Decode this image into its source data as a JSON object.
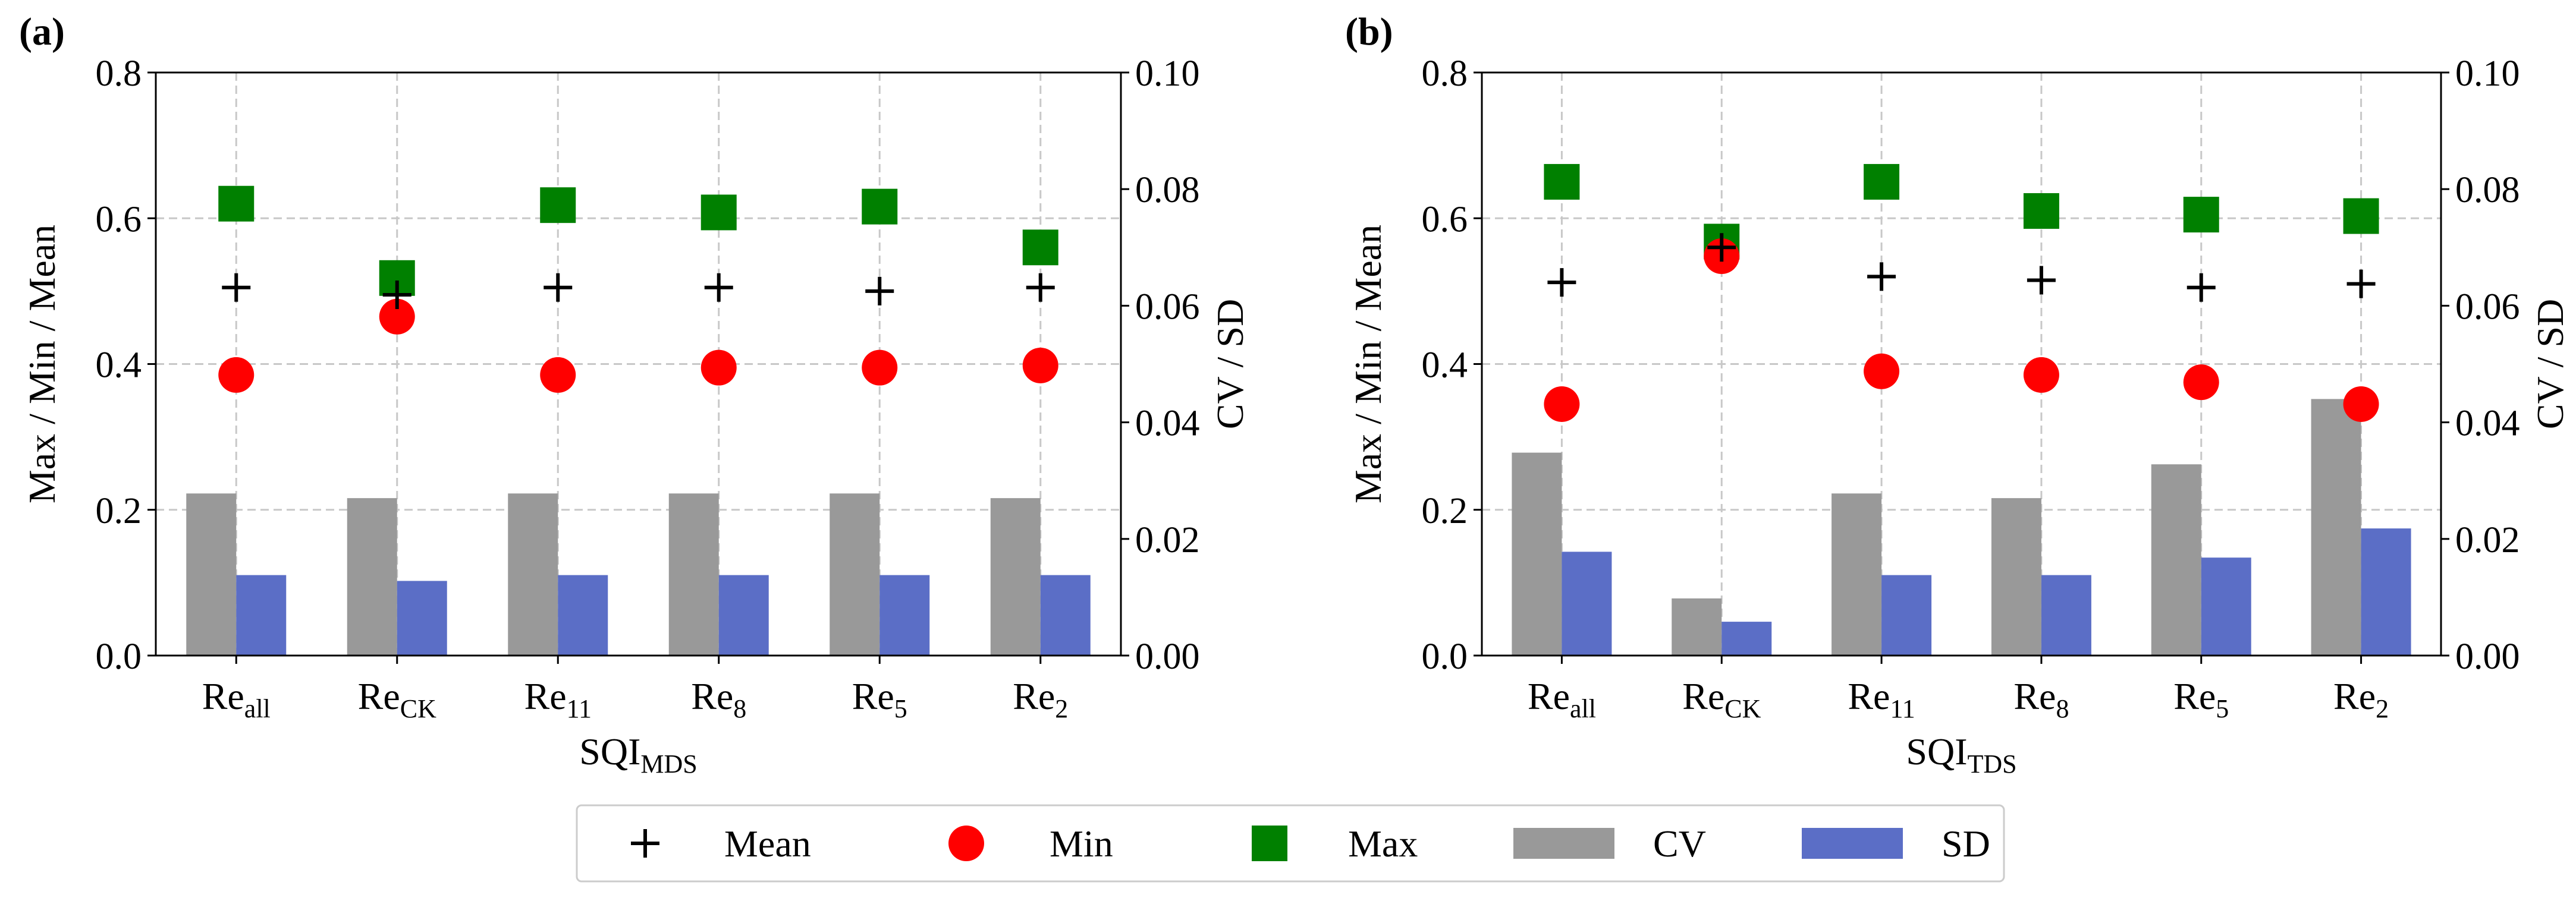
{
  "legend": {
    "items": [
      {
        "key": "mean",
        "label": "Mean",
        "color": "#000000",
        "marker": "plus"
      },
      {
        "key": "min",
        "label": "Min",
        "color": "#ff0000",
        "marker": "circle"
      },
      {
        "key": "max",
        "label": "Max",
        "color": "#008000",
        "marker": "square"
      },
      {
        "key": "cv",
        "label": "CV",
        "color": "#999999",
        "marker": "bar"
      },
      {
        "key": "sd",
        "label": "SD",
        "color": "#5b6ec6",
        "marker": "bar"
      }
    ]
  },
  "chart_data": [
    {
      "panel_label": "(a)",
      "type": "bar+scatter",
      "categories": [
        {
          "base": "Re",
          "sub": "all"
        },
        {
          "base": "Re",
          "sub": "CK"
        },
        {
          "base": "Re",
          "sub": "11"
        },
        {
          "base": "Re",
          "sub": "8"
        },
        {
          "base": "Re",
          "sub": "5"
        },
        {
          "base": "Re",
          "sub": "2"
        }
      ],
      "xlabel": {
        "base": "SQI",
        "sub": "MDS"
      },
      "ylabel_left": "Max / Min / Mean",
      "ylabel_right": "CV / SD",
      "ylim_left": [
        0,
        0.8
      ],
      "ylim_right": [
        0,
        0.1
      ],
      "yticks_left": [
        "0.0",
        "0.2",
        "0.4",
        "0.6",
        "0.8"
      ],
      "yticks_right": [
        "0.00",
        "0.02",
        "0.04",
        "0.06",
        "0.08",
        "0.10"
      ],
      "grid": true,
      "series": {
        "mean": [
          0.505,
          0.495,
          0.505,
          0.505,
          0.5,
          0.505
        ],
        "min": [
          0.385,
          0.465,
          0.385,
          0.395,
          0.395,
          0.398
        ],
        "max": [
          0.62,
          0.518,
          0.618,
          0.608,
          0.616,
          0.56
        ],
        "cv": [
          0.0278,
          0.027,
          0.0278,
          0.0278,
          0.0278,
          0.027
        ],
        "sd": [
          0.0138,
          0.0128,
          0.0138,
          0.0138,
          0.0138,
          0.0138
        ]
      }
    },
    {
      "panel_label": "(b)",
      "type": "bar+scatter",
      "categories": [
        {
          "base": "Re",
          "sub": "all"
        },
        {
          "base": "Re",
          "sub": "CK"
        },
        {
          "base": "Re",
          "sub": "11"
        },
        {
          "base": "Re",
          "sub": "8"
        },
        {
          "base": "Re",
          "sub": "5"
        },
        {
          "base": "Re",
          "sub": "2"
        }
      ],
      "xlabel": {
        "base": "SQI",
        "sub": "TDS"
      },
      "ylabel_left": "Max / Min / Mean",
      "ylabel_right": "CV / SD",
      "ylim_left": [
        0,
        0.8
      ],
      "ylim_right": [
        0,
        0.1
      ],
      "yticks_left": [
        "0.0",
        "0.2",
        "0.4",
        "0.6",
        "0.8"
      ],
      "yticks_right": [
        "0.00",
        "0.02",
        "0.04",
        "0.06",
        "0.08",
        "0.10"
      ],
      "grid": true,
      "series": {
        "mean": [
          0.512,
          0.56,
          0.52,
          0.515,
          0.505,
          0.51
        ],
        "min": [
          0.345,
          0.548,
          0.39,
          0.385,
          0.375,
          0.345
        ],
        "max": [
          0.65,
          0.568,
          0.65,
          0.61,
          0.605,
          0.603
        ],
        "cv": [
          0.0348,
          0.0098,
          0.0278,
          0.027,
          0.0328,
          0.044
        ],
        "sd": [
          0.0178,
          0.0058,
          0.0138,
          0.0138,
          0.0168,
          0.0218
        ]
      }
    }
  ]
}
